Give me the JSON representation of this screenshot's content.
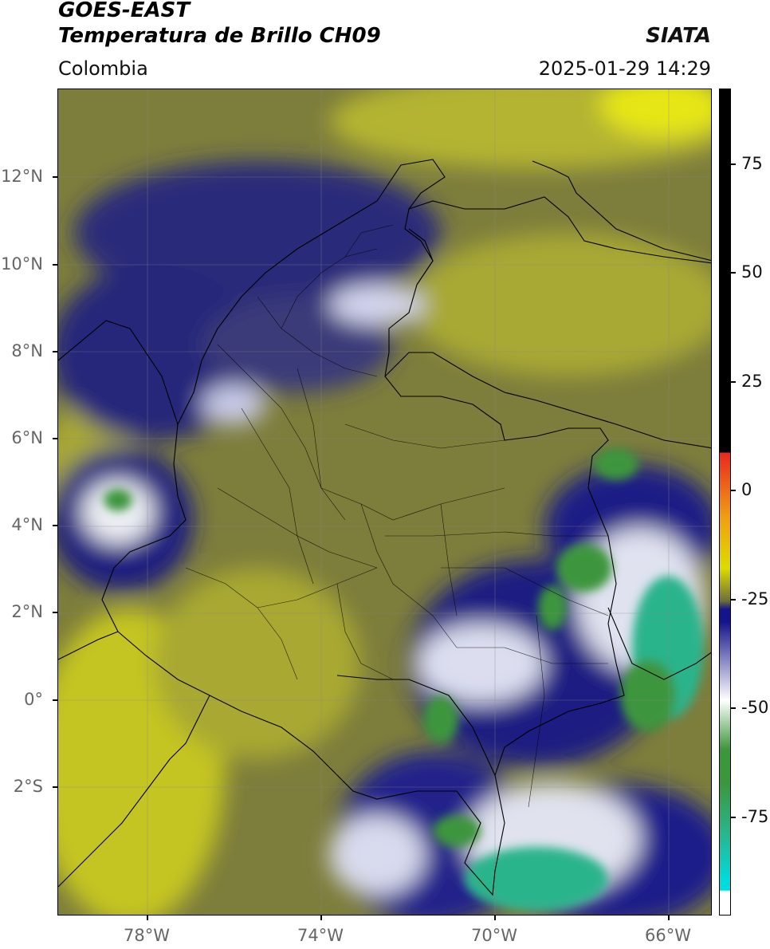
{
  "header": {
    "satellite": "GOES-EAST",
    "product": "Temperatura de Brillo CH09",
    "agency": "SIATA",
    "region": "Colombia",
    "timestamp": "2025-01-29 14:29"
  },
  "map": {
    "lat_labels": [
      "12°N",
      "10°N",
      "8°N",
      "6°N",
      "4°N",
      "2°N",
      "0°",
      "2°S"
    ],
    "lon_labels": [
      "78°W",
      "74°W",
      "70°W",
      "66°W"
    ],
    "colors": {
      "warm": "#c8c828",
      "mid": "#6e6e3a",
      "cold": "#1e1e78",
      "very_cold": "#e8e8f4",
      "coldest_green": "#3c963c",
      "teal": "#2ab48c",
      "border": "#000000"
    }
  },
  "colorbar": {
    "labels": [
      "75",
      "50",
      "25",
      "0",
      "-25",
      "-50",
      "-75"
    ],
    "colors": {
      "black": "#000000",
      "red": "#e8281e",
      "orange": "#f0a014",
      "yellow": "#dcdc00",
      "olive": "#6e6e3a",
      "navy": "#14148c",
      "white": "#ffffff",
      "green": "#3c963c",
      "cyan": "#00dcdc"
    }
  }
}
